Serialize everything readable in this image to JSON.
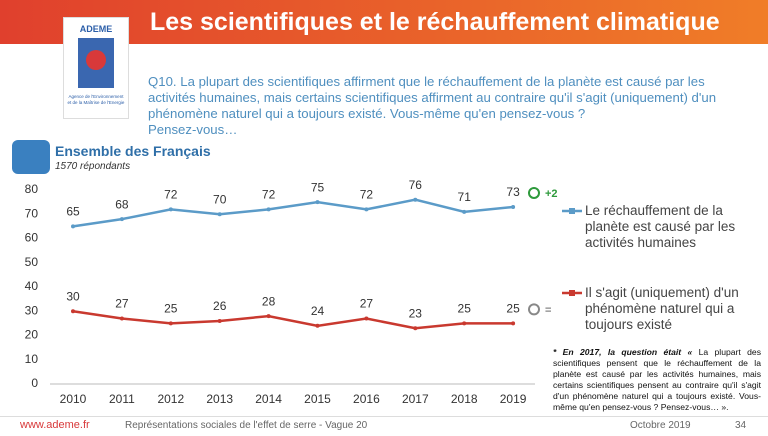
{
  "header": {
    "title": "Les scientifiques et le réchauffement climatique"
  },
  "logo": {
    "name": "ADEME",
    "caption": "Agence de l'Environnement et de la Maîtrise de l'Energie"
  },
  "question": {
    "text": "Q10. La plupart des scientifiques affirment que le réchauffement de la planète est causé par les activités humaines, mais certains scientifiques affirment au contraire qu'il s'agit (uniquement) d'un phénomène naturel qui a toujours existé. Vous-même qu'en pensez-vous ?",
    "end": "Pensez-vous…"
  },
  "chart_data": {
    "type": "line",
    "title": "Ensemble des Français",
    "subtitle": "1570 répondants",
    "categories": [
      "2010",
      "2011",
      "2012",
      "2013",
      "2014",
      "2015",
      "2016",
      "2017",
      "2018",
      "2019"
    ],
    "series": [
      {
        "name": "Le réchauffement de la planète est causé par les activités humaines",
        "color": "#5b9bc8",
        "values": [
          65,
          68,
          72,
          70,
          72,
          75,
          72,
          76,
          71,
          73
        ],
        "annotation": "+2",
        "annotation_color": "#2e9a3c"
      },
      {
        "name": "Il s'agit (uniquement) d'un phénomène naturel qui a toujours existé",
        "color": "#c9392f",
        "values": [
          30,
          27,
          25,
          26,
          28,
          24,
          27,
          23,
          25,
          25
        ],
        "annotation": "=",
        "annotation_color": "#888888"
      }
    ],
    "ylim": [
      0,
      80
    ],
    "yticks": [
      0,
      10,
      20,
      30,
      40,
      50,
      60,
      70,
      80
    ],
    "grid": false,
    "legend": "right"
  },
  "footnote": {
    "lead": "* En 2017, la question était «",
    "text": "La plupart des scientifiques pensent que le réchauffement de la planète est causé par les activités humaines, mais certains scientifiques pensent au contraire qu'il s'agit d'un phénomène naturel qui a toujours existé. Vous-même qu'en pensez-vous ? Pensez-vous… »."
  },
  "footer": {
    "site": "www.ademe.fr",
    "study": "Représentations sociales de l'effet de serre - Vague 20",
    "date": "Octobre 2019",
    "page": "34"
  }
}
